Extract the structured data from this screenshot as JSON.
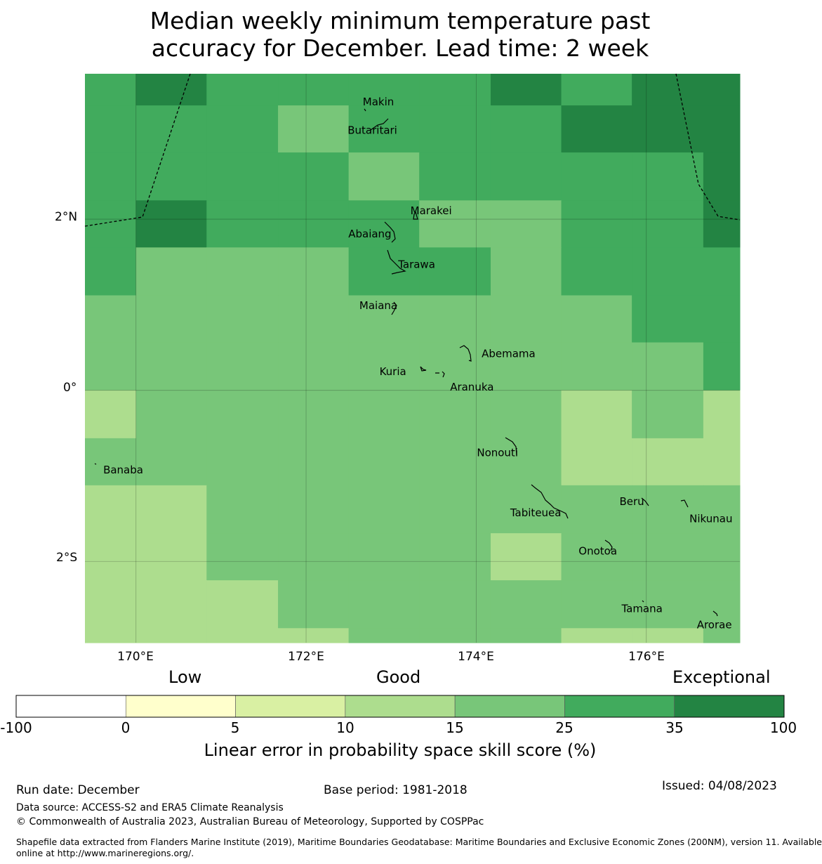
{
  "title": {
    "line1": "Median weekly minimum temperature past",
    "line2": "accuracy for December. Lead time: 2 week"
  },
  "map": {
    "lon_range": [
      169.4,
      177.1
    ],
    "lat_range": [
      -2.95,
      3.7
    ],
    "grid_lon_edges": [
      169.4,
      170.0,
      170.83,
      171.67,
      172.5,
      173.33,
      174.17,
      175.0,
      175.83,
      176.67,
      177.1
    ],
    "grid_lat_edges": [
      3.7,
      3.33,
      2.78,
      2.22,
      1.67,
      1.11,
      0.56,
      0.0,
      -0.56,
      -1.11,
      -1.67,
      -2.22,
      -2.78,
      -2.95
    ],
    "cell_classes": [
      [
        5,
        6,
        5,
        5,
        5,
        5,
        6,
        5,
        6,
        6
      ],
      [
        5,
        5,
        5,
        4,
        5,
        5,
        5,
        6,
        6,
        6
      ],
      [
        5,
        5,
        5,
        5,
        4,
        5,
        5,
        5,
        5,
        6
      ],
      [
        5,
        6,
        5,
        5,
        5,
        4,
        4,
        5,
        5,
        6
      ],
      [
        5,
        4,
        4,
        4,
        5,
        5,
        4,
        5,
        5,
        5
      ],
      [
        4,
        4,
        4,
        4,
        4,
        4,
        4,
        4,
        5,
        5
      ],
      [
        4,
        4,
        4,
        4,
        4,
        4,
        4,
        4,
        4,
        5
      ],
      [
        3,
        4,
        4,
        4,
        4,
        4,
        4,
        3,
        4,
        3
      ],
      [
        4,
        4,
        4,
        4,
        4,
        4,
        4,
        3,
        3,
        3
      ],
      [
        3,
        3,
        4,
        4,
        4,
        4,
        4,
        4,
        4,
        4
      ],
      [
        3,
        3,
        4,
        4,
        4,
        4,
        3,
        4,
        4,
        4
      ],
      [
        3,
        3,
        3,
        4,
        4,
        4,
        4,
        4,
        4,
        4
      ],
      [
        3,
        3,
        3,
        3,
        4,
        4,
        4,
        3,
        3,
        4
      ]
    ],
    "x_ticks": [
      {
        "lon": 170,
        "label": "170°E"
      },
      {
        "lon": 172,
        "label": "172°E"
      },
      {
        "lon": 174,
        "label": "174°E"
      },
      {
        "lon": 176,
        "label": "176°E"
      }
    ],
    "y_ticks": [
      {
        "lat": 2,
        "label": "2°N"
      },
      {
        "lat": 0,
        "label": "0°"
      },
      {
        "lat": -2,
        "label": "2°S"
      }
    ],
    "places": [
      {
        "name": "Makin",
        "lon": 172.85,
        "lat": 3.37
      },
      {
        "name": "Butaritari",
        "lon": 172.78,
        "lat": 3.04
      },
      {
        "name": "Marakei",
        "lon": 173.47,
        "lat": 2.1
      },
      {
        "name": "Abaiang",
        "lon": 172.75,
        "lat": 1.83
      },
      {
        "name": "Tarawa",
        "lon": 173.3,
        "lat": 1.47
      },
      {
        "name": "Maiana",
        "lon": 172.85,
        "lat": 0.99
      },
      {
        "name": "Abemama",
        "lon": 174.38,
        "lat": 0.43
      },
      {
        "name": "Kuria",
        "lon": 173.02,
        "lat": 0.22
      },
      {
        "name": "Aranuka",
        "lon": 173.95,
        "lat": 0.04
      },
      {
        "name": "Nonouti",
        "lon": 174.25,
        "lat": -0.73
      },
      {
        "name": "Banaba",
        "lon": 169.85,
        "lat": -0.93
      },
      {
        "name": "Tabiteuea",
        "lon": 174.7,
        "lat": -1.43
      },
      {
        "name": "Beru",
        "lon": 175.83,
        "lat": -1.3
      },
      {
        "name": "Nikunau",
        "lon": 176.76,
        "lat": -1.5
      },
      {
        "name": "Onotoa",
        "lon": 175.43,
        "lat": -1.88
      },
      {
        "name": "Tamana",
        "lon": 175.95,
        "lat": -2.55
      },
      {
        "name": "Arorae",
        "lon": 176.8,
        "lat": -2.74
      }
    ]
  },
  "legend": {
    "categories": {
      "low": "Low",
      "good": "Good",
      "exceptional": "Exceptional"
    },
    "bins": [
      {
        "from": -100,
        "to": 0,
        "color": "#ffffff"
      },
      {
        "from": 0,
        "to": 5,
        "color": "#ffffcc"
      },
      {
        "from": 5,
        "to": 10,
        "color": "#d9f0a3"
      },
      {
        "from": 10,
        "to": 15,
        "color": "#addd8e"
      },
      {
        "from": 15,
        "to": 25,
        "color": "#78c679"
      },
      {
        "from": 25,
        "to": 35,
        "color": "#41ab5d"
      },
      {
        "from": 35,
        "to": 100,
        "color": "#238443"
      }
    ],
    "tick_labels": [
      "-100",
      "0",
      "5",
      "10",
      "15",
      "25",
      "35",
      "100"
    ],
    "title": "Linear error in probability space skill score (%)"
  },
  "footer": {
    "run_date": "Run date: December",
    "base_period": "Base period: 1981-2018",
    "issued": "Issued: 04/08/2023",
    "data_source": "Data source: ACCESS-S2 and ERA5 Climate Reanalysis",
    "copyright": "© Commonwealth of Australia 2023, Australian Bureau of Meteorology, Supported by COSPPac",
    "shapefile_line1": "Shapefile data extracted from Flanders Marine Institute (2019), Maritime Boundaries Geodatabase: Maritime Boundaries and Exclusive Economic Zones (200NM), version 11. Available",
    "shapefile_line2": "online at http://www.marineregions.org/."
  }
}
